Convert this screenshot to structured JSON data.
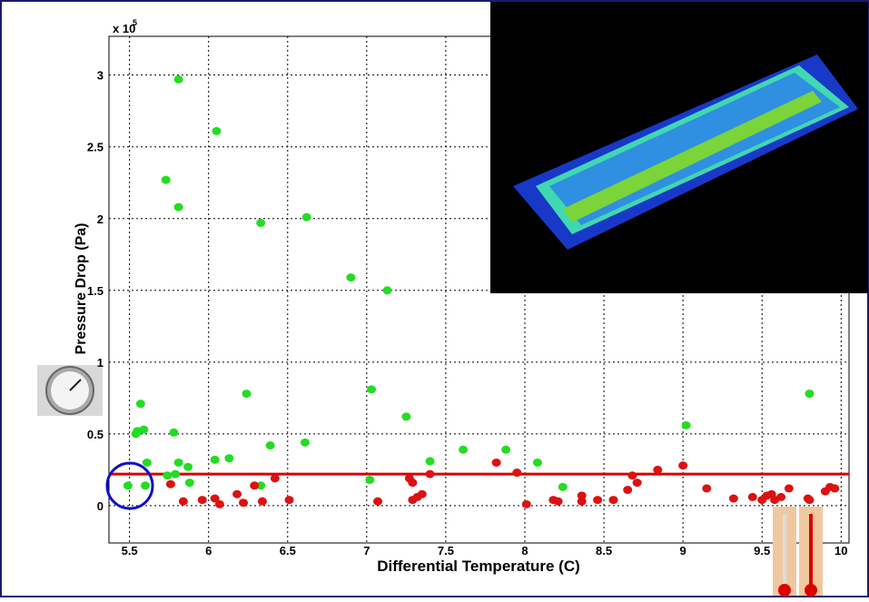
{
  "chart_data": {
    "type": "scatter",
    "x_label": "Differential Temperature (C)",
    "y_label": "Pressure Drop (Pa)",
    "y_multiplier": "x 10",
    "y_multiplier_exponent": "5",
    "xlim": [
      5.37,
      10.05
    ],
    "ylim": [
      -0.26,
      3.27
    ],
    "xticks": [
      5.5,
      6,
      6.5,
      7,
      7.5,
      8,
      8.5,
      9,
      9.5,
      10
    ],
    "yticks": [
      0,
      0.5,
      1,
      1.5,
      2,
      2.5,
      3
    ],
    "grid": true,
    "hline": 0.22,
    "hline_color": "#dd0000",
    "series": [
      {
        "color": "#22dd22",
        "x": [
          5.81,
          6.05,
          5.73,
          5.81,
          6.33,
          6.62,
          6.9,
          7.13,
          5.57,
          6.24,
          7.03,
          9.8,
          7.25,
          9.02,
          5.55,
          5.59,
          5.54,
          5.78,
          6.61,
          6.39,
          7.61,
          7.88,
          6.13,
          6.04,
          5.81,
          5.61,
          7.4,
          8.08,
          5.87,
          5.79,
          5.74,
          5.88,
          5.6,
          5.49,
          6.33,
          7.02,
          8.24
        ],
        "values": [
          2.97,
          2.61,
          2.27,
          2.08,
          1.97,
          2.01,
          1.59,
          1.5,
          0.71,
          0.78,
          0.81,
          0.78,
          0.62,
          0.56,
          0.52,
          0.53,
          0.5,
          0.51,
          0.44,
          0.42,
          0.39,
          0.39,
          0.33,
          0.32,
          0.3,
          0.3,
          0.31,
          0.3,
          0.27,
          0.22,
          0.21,
          0.16,
          0.14,
          0.14,
          0.14,
          0.18,
          0.13
        ]
      },
      {
        "color": "#dd1111",
        "x": [
          5.76,
          5.84,
          5.96,
          6.04,
          6.07,
          6.18,
          6.22,
          6.29,
          6.34,
          6.42,
          6.51,
          7.07,
          7.27,
          7.29,
          7.29,
          7.32,
          7.35,
          7.4,
          7.82,
          7.95,
          8.01,
          8.18,
          8.21,
          8.36,
          8.36,
          8.46,
          8.56,
          8.65,
          8.68,
          8.71,
          8.84,
          9.0,
          9.15,
          9.32,
          9.44,
          9.5,
          9.53,
          9.56,
          9.58,
          9.62,
          9.67,
          9.79,
          9.8,
          9.9,
          9.93,
          9.96
        ],
        "values": [
          0.15,
          0.03,
          0.04,
          0.05,
          0.01,
          0.08,
          0.02,
          0.14,
          0.03,
          0.19,
          0.04,
          0.03,
          0.19,
          0.16,
          0.04,
          0.06,
          0.08,
          0.22,
          0.3,
          0.23,
          0.01,
          0.04,
          0.03,
          0.07,
          0.03,
          0.04,
          0.04,
          0.11,
          0.21,
          0.16,
          0.25,
          0.28,
          0.12,
          0.05,
          0.06,
          0.04,
          0.07,
          0.08,
          0.04,
          0.06,
          0.12,
          0.05,
          0.04,
          0.1,
          0.13,
          0.12
        ]
      }
    ]
  }
}
